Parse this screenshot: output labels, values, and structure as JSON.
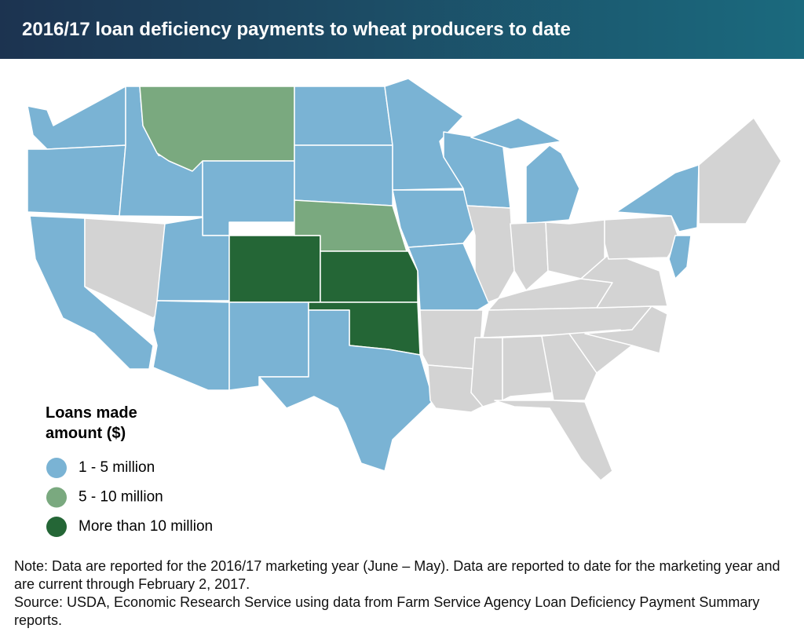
{
  "header": {
    "title": "2016/17 loan deficiency payments to wheat producers to date"
  },
  "legend": {
    "title": [
      "Loans made",
      "amount ($)"
    ],
    "items": [
      {
        "label": "1 - 5 million",
        "color": "#7ab3d4"
      },
      {
        "label": "5 - 10 million",
        "color": "#7aa97f"
      },
      {
        "label": "More than 10 million",
        "color": "#246636"
      }
    ]
  },
  "no_data_color": "#d3d3d3",
  "notes": {
    "note": "Note: Data are reported for the 2016/17 marketing year (June – May). Data are reported to date for the marketing year and are current through February 2, 2017.",
    "source": "Source: USDA, Economic Research Service using data from Farm Service Agency Loan Deficiency Payment Summary reports."
  }
}
